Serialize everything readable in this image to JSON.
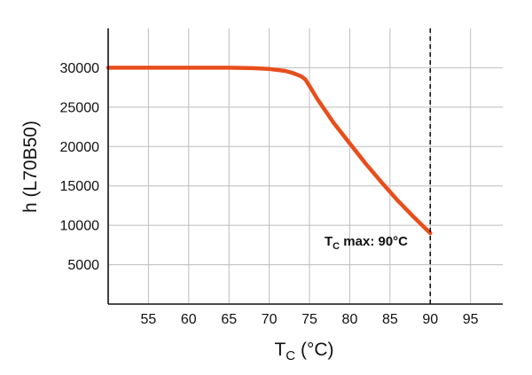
{
  "chart_data": {
    "type": "line",
    "xlabel": {
      "main": "T",
      "sub": "C",
      "unit": " (°C)"
    },
    "ylabel": "h (L70B50)",
    "xlim": [
      50,
      99
    ],
    "ylim": [
      0,
      35000
    ],
    "x_ticks": [
      55,
      60,
      65,
      70,
      75,
      80,
      85,
      90,
      95
    ],
    "x_tick_labels": [
      "55",
      "60",
      "65",
      "70",
      "75",
      "80",
      "85",
      "90",
      "95"
    ],
    "y_ticks": [
      5000,
      10000,
      15000,
      20000,
      25000,
      30000
    ],
    "y_tick_labels": [
      "5000",
      "10000",
      "15000",
      "20000",
      "25000",
      "30000"
    ],
    "grid": true,
    "series": [
      {
        "color": "#e84e1b",
        "x": [
          50,
          55,
          60,
          65,
          68,
          70,
          72,
          73,
          74,
          74.5,
          75,
          76,
          77,
          78,
          80,
          82,
          84,
          86,
          88,
          90
        ],
        "y": [
          30000,
          30000,
          30000,
          30000,
          29950,
          29850,
          29600,
          29300,
          28900,
          28500,
          27700,
          26000,
          24500,
          23000,
          20400,
          17800,
          15400,
          13100,
          11000,
          9000
        ]
      }
    ],
    "annotations": [
      {
        "x": 90,
        "style": "dashed-vertical",
        "label_main": "T",
        "label_sub": "C",
        "label_rest": " max: 90°C"
      }
    ]
  }
}
